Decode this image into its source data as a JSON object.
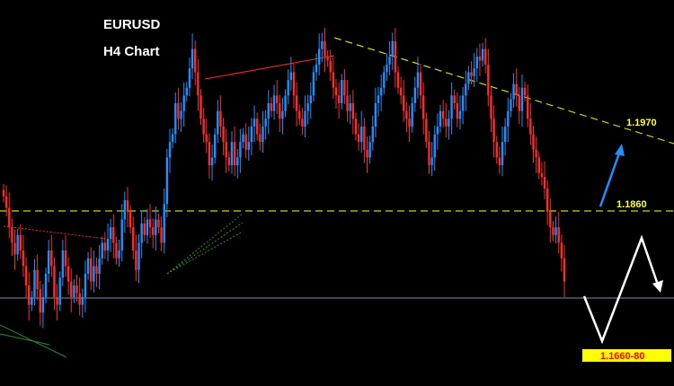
{
  "chart_data": {
    "type": "candlestick",
    "title": "EURUSD",
    "subtitle": "H4 Chart",
    "colors": {
      "background": "#000000",
      "bull": "#1e90ff",
      "bear": "#ff2a2a",
      "resistance_line": "#d4d400",
      "support_line": "#d4d400",
      "current_price_line": "#7a8fb0",
      "forecast_arrow_up": "#1e90ff",
      "forecast_zigzag": "#ffffff",
      "target_badge_bg": "#ffff00",
      "target_badge_text": "#ff0000"
    },
    "price_range": [
      1.162,
      1.206
    ],
    "levels": [
      {
        "name": "resistance",
        "label": "1.1970"
      },
      {
        "name": "support",
        "value": 1.186,
        "label": "1.1860"
      }
    ],
    "current_price": 1.17,
    "target_label": "1.1660-80",
    "closes": [
      1.183,
      1.1815,
      1.179,
      1.177,
      1.1755,
      1.178,
      1.176,
      1.174,
      1.1715,
      1.169,
      1.17,
      1.1735,
      1.171,
      1.168,
      1.17,
      1.173,
      1.176,
      1.174,
      1.17,
      1.169,
      1.1725,
      1.176,
      1.174,
      1.172,
      1.17,
      1.1715,
      1.1705,
      1.169,
      1.17,
      1.173,
      1.175,
      1.172,
      1.174,
      1.173,
      1.175,
      1.177,
      1.176,
      1.1775,
      1.179,
      1.177,
      1.175,
      1.176,
      1.18,
      1.1825,
      1.181,
      1.179,
      1.176,
      1.1735,
      1.177,
      1.1795,
      1.178,
      1.18,
      1.179,
      1.178,
      1.18,
      1.179,
      1.177,
      1.182,
      1.188,
      1.19,
      1.191,
      1.195,
      1.193,
      1.194,
      1.196,
      1.197,
      1.1995,
      1.202,
      1.199,
      1.196,
      1.193,
      1.191,
      1.19,
      1.187,
      1.188,
      1.191,
      1.194,
      1.192,
      1.19,
      1.188,
      1.187,
      1.19,
      1.187,
      1.188,
      1.19,
      1.191,
      1.189,
      1.19,
      1.192,
      1.193,
      1.191,
      1.19,
      1.192,
      1.193,
      1.195,
      1.194,
      1.196,
      1.195,
      1.193,
      1.194,
      1.196,
      1.198,
      1.199,
      1.196,
      1.194,
      1.193,
      1.192,
      1.194,
      1.195,
      1.196,
      1.199,
      1.2,
      1.202,
      1.203,
      1.201,
      1.2005,
      1.199,
      1.197,
      1.196,
      1.195,
      1.198,
      1.196,
      1.194,
      1.195,
      1.193,
      1.191,
      1.19,
      1.192,
      1.189,
      1.188,
      1.19,
      1.192,
      1.195,
      1.196,
      1.197,
      1.199,
      1.2,
      1.201,
      1.203,
      1.199,
      1.197,
      1.196,
      1.194,
      1.193,
      1.192,
      1.195,
      1.197,
      1.199,
      1.196,
      1.193,
      1.19,
      1.187,
      1.188,
      1.191,
      1.192,
      1.194,
      1.193,
      1.192,
      1.193,
      1.196,
      1.195,
      1.193,
      1.194,
      1.196,
      1.1975,
      1.199,
      1.1985,
      1.1995,
      1.201,
      1.2005,
      1.202,
      1.2,
      1.196,
      1.193,
      1.19,
      1.188,
      1.187,
      1.19,
      1.192,
      1.194,
      1.1955,
      1.1975,
      1.196,
      1.194,
      1.197,
      1.196,
      1.193,
      1.191,
      1.189,
      1.188,
      1.186,
      1.1855,
      1.184,
      1.181,
      1.179,
      1.178,
      1.179,
      1.177,
      1.175,
      1.172
    ]
  }
}
